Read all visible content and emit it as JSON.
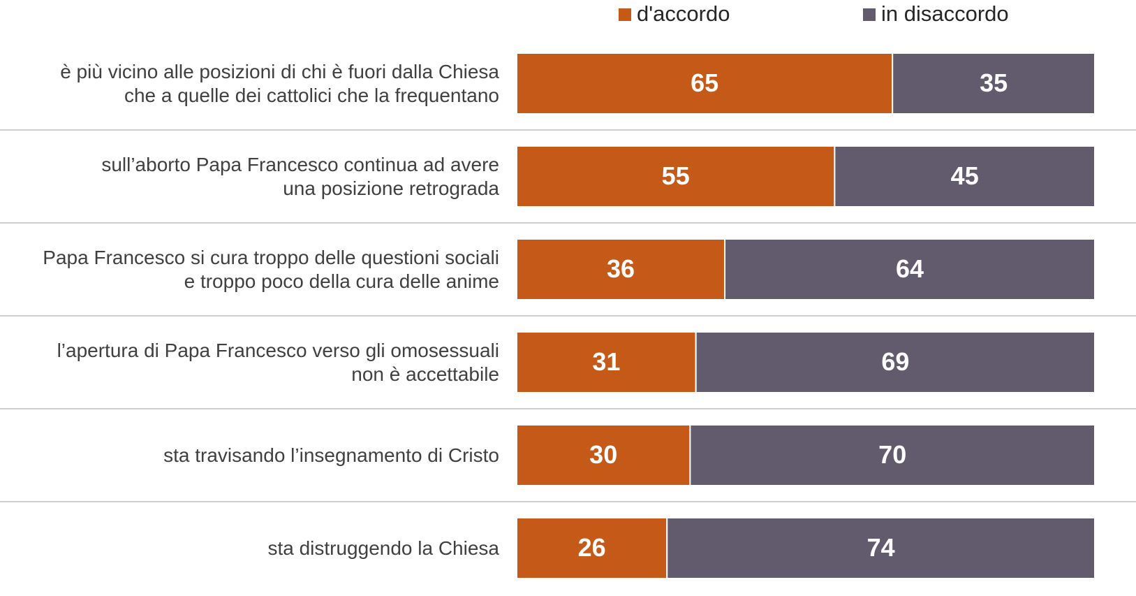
{
  "chart_data": {
    "type": "stacked_barh",
    "categories": [
      "è più vicino alle posizioni di chi è fuori dalla Chiesa\nche a quelle dei cattolici che la frequentano",
      "sull’aborto Papa Francesco continua ad avere\nuna posizione retrograda",
      "Papa Francesco si cura troppo delle questioni sociali\ne troppo poco della cura delle anime",
      "l’apertura di Papa Francesco verso gli omosessuali\nnon è accettabile",
      "sta travisando l’insegnamento di Cristo",
      "sta distruggendo la Chiesa"
    ],
    "series": [
      {
        "name": "d'accordo",
        "color": "#c55a18",
        "values": [
          65,
          55,
          36,
          31,
          30,
          26
        ]
      },
      {
        "name": "in disaccordo",
        "color": "#625a6d",
        "values": [
          35,
          45,
          64,
          69,
          70,
          74
        ]
      }
    ],
    "xlim": [
      0,
      100
    ]
  }
}
